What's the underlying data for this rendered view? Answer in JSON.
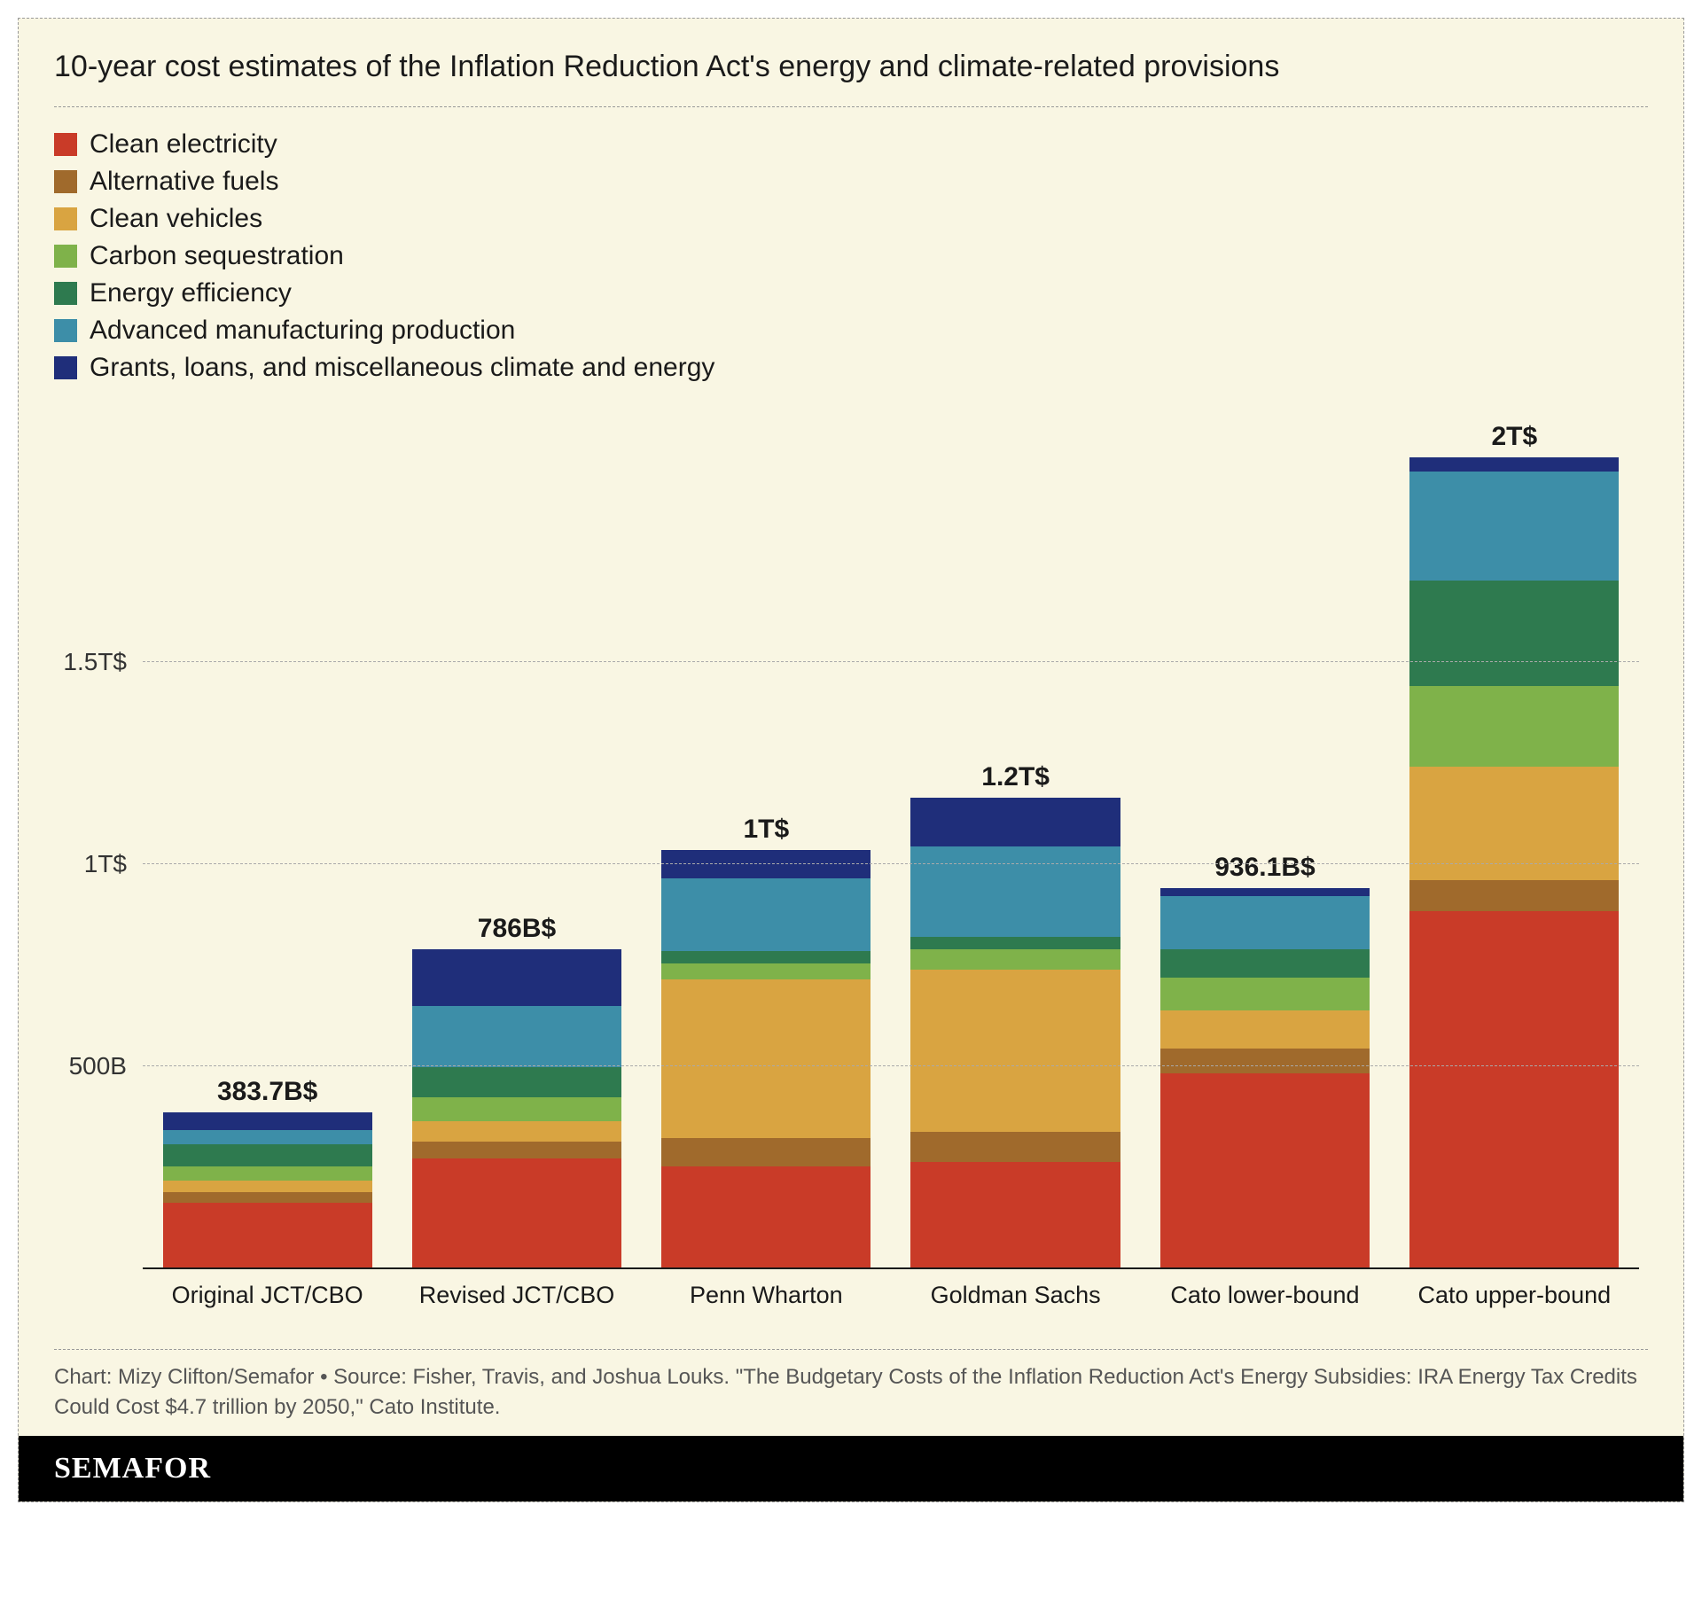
{
  "chart": {
    "type": "stacked-bar",
    "title": "10-year cost estimates of the Inflation Reduction Act's energy and climate-related provisions",
    "background_color": "#f9f6e3",
    "grid_color": "#aaaaaa",
    "axis_color": "#1a1a1a",
    "title_fontsize": 34,
    "legend_fontsize": 30,
    "axis_label_fontsize": 28,
    "bar_total_fontsize": 30,
    "y_axis": {
      "min": 0,
      "max": 2100,
      "ticks": [
        {
          "value": 500,
          "label": "500B"
        },
        {
          "value": 1000,
          "label": "1T$"
        },
        {
          "value": 1500,
          "label": "1.5T$"
        }
      ]
    },
    "series": [
      {
        "key": "clean_electricity",
        "label": "Clean electricity",
        "color": "#c93b28"
      },
      {
        "key": "alternative_fuels",
        "label": "Alternative fuels",
        "color": "#a06a2c"
      },
      {
        "key": "clean_vehicles",
        "label": "Clean vehicles",
        "color": "#d9a441"
      },
      {
        "key": "carbon_sequestration",
        "label": "Carbon sequestration",
        "color": "#7fb24a"
      },
      {
        "key": "energy_efficiency",
        "label": "Energy efficiency",
        "color": "#2e7a4f"
      },
      {
        "key": "advanced_manufacturing",
        "label": "Advanced manufacturing production",
        "color": "#3d8ea8"
      },
      {
        "key": "grants_loans_misc",
        "label": "Grants, loans, and miscellaneous climate and energy",
        "color": "#1f2e7a"
      }
    ],
    "categories": [
      {
        "label": "Original JCT/CBO",
        "total_label": "383.7B$",
        "values": {
          "clean_electricity": 160,
          "alternative_fuels": 25,
          "clean_vehicles": 30,
          "carbon_sequestration": 35,
          "energy_efficiency": 55,
          "advanced_manufacturing": 35,
          "grants_loans_misc": 43.7
        }
      },
      {
        "label": "Revised JCT/CBO",
        "total_label": "786B$",
        "values": {
          "clean_electricity": 270,
          "alternative_fuels": 40,
          "clean_vehicles": 50,
          "carbon_sequestration": 60,
          "energy_efficiency": 75,
          "advanced_manufacturing": 150,
          "grants_loans_misc": 141
        }
      },
      {
        "label": "Penn Wharton",
        "total_label": "1T$",
        "values": {
          "clean_electricity": 250,
          "alternative_fuels": 70,
          "clean_vehicles": 390,
          "carbon_sequestration": 40,
          "energy_efficiency": 30,
          "advanced_manufacturing": 180,
          "grants_loans_misc": 70
        }
      },
      {
        "label": "Goldman Sachs",
        "total_label": "1.2T$",
        "values": {
          "clean_electricity": 260,
          "alternative_fuels": 75,
          "clean_vehicles": 400,
          "carbon_sequestration": 50,
          "energy_efficiency": 30,
          "advanced_manufacturing": 225,
          "grants_loans_misc": 120
        }
      },
      {
        "label": "Cato lower-bound",
        "total_label": "936.1B$",
        "values": {
          "clean_electricity": 480,
          "alternative_fuels": 60,
          "clean_vehicles": 95,
          "carbon_sequestration": 80,
          "energy_efficiency": 70,
          "advanced_manufacturing": 131,
          "grants_loans_misc": 20
        }
      },
      {
        "label": "Cato upper-bound",
        "total_label": "2T$",
        "values": {
          "clean_electricity": 880,
          "alternative_fuels": 75,
          "clean_vehicles": 280,
          "carbon_sequestration": 200,
          "energy_efficiency": 260,
          "advanced_manufacturing": 270,
          "grants_loans_misc": 35
        }
      }
    ],
    "source_note": "Chart: Mizy Clifton/Semafor • Source: Fisher, Travis, and Joshua Louks. \"The Budgetary Costs of the Inflation Reduction Act's Energy Subsidies: IRA Energy Tax Credits Could Cost $4.7 trillion by 2050,\" Cato Institute.",
    "brand": "SEMAFOR"
  }
}
